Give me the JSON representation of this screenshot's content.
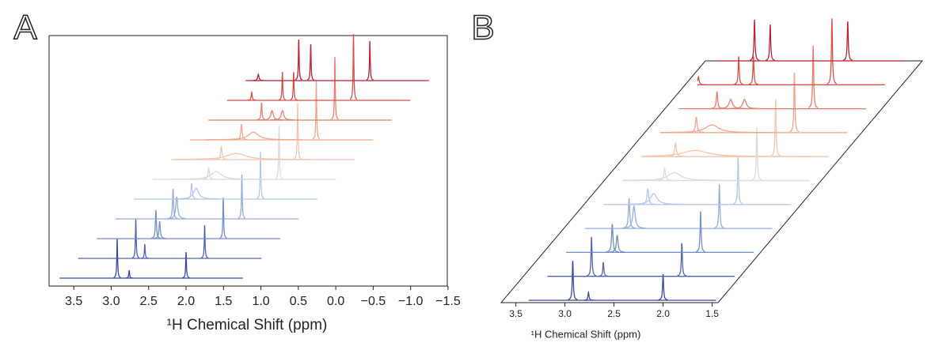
{
  "chart_data": [
    {
      "type": "stacked-spectra",
      "panel_label": "A",
      "xlabel": "¹H Chemical Shift (ppm)",
      "xlim": [
        3.83,
        -1.49
      ],
      "trace_range": [
        3.69,
        1.24
      ],
      "xticks": [
        3.5,
        {
          "value": 3,
          "label": "3.0"
        },
        2.5,
        {
          "value": 2,
          "label": "2.0"
        },
        1.5,
        {
          "value": 1,
          "label": "1.0"
        },
        0.5,
        {
          "value": 0,
          "label": "0.0"
        },
        {
          "value": -0.5,
          "label": "−0.5"
        },
        {
          "value": -1,
          "label": "−1.0"
        },
        {
          "value": -1.5,
          "label": "−1.5"
        }
      ],
      "series": [
        {
          "color": "#3848a0",
          "peaks": [
            {
              "x": 2.92,
              "height": 50,
              "width": 0.006
            },
            {
              "x": 2.76,
              "height": 10,
              "width": 0.006
            },
            {
              "x": 2.0,
              "height": 33,
              "width": 0.006
            }
          ]
        },
        {
          "color": "#4a62b6",
          "peaks": [
            {
              "x": 2.92,
              "height": 50,
              "width": 0.006
            },
            {
              "x": 2.8,
              "height": 18,
              "width": 0.006
            },
            {
              "x": 2.0,
              "height": 42,
              "width": 0.006
            }
          ]
        },
        {
          "color": "#6f8ccc",
          "peaks": [
            {
              "x": 2.9,
              "height": 36,
              "width": 0.008
            },
            {
              "x": 2.85,
              "height": 22,
              "width": 0.01
            },
            {
              "x": 2.0,
              "height": 52,
              "width": 0.006
            }
          ]
        },
        {
          "color": "#93acdd",
          "peaks": [
            {
              "x": 2.92,
              "height": 38,
              "width": 0.008
            },
            {
              "x": 2.87,
              "height": 28,
              "width": 0.015
            },
            {
              "x": 2.0,
              "height": 56,
              "width": 0.006
            }
          ]
        },
        {
          "color": "#b4c7ea",
          "peaks": [
            {
              "x": 2.92,
              "height": 20,
              "width": 0.01
            },
            {
              "x": 2.86,
              "height": 14,
              "width": 0.04
            },
            {
              "x": 2.0,
              "height": 60,
              "width": 0.006
            }
          ]
        },
        {
          "color": "#dadada",
          "peaks": [
            {
              "x": 2.94,
              "height": 15,
              "width": 0.01
            },
            {
              "x": 2.84,
              "height": 10,
              "width": 0.08
            },
            {
              "x": 2.0,
              "height": 68,
              "width": 0.006
            }
          ]
        },
        {
          "color": "#f5c4ad",
          "peaks": [
            {
              "x": 3.02,
              "height": 17,
              "width": 0.01
            },
            {
              "x": 2.82,
              "height": 8,
              "width": 0.15
            },
            {
              "x": 2.0,
              "height": 72,
              "width": 0.006
            }
          ]
        },
        {
          "color": "#f1a48a",
          "peaks": [
            {
              "x": 3.0,
              "height": 20,
              "width": 0.01
            },
            {
              "x": 2.84,
              "height": 10,
              "width": 0.08
            },
            {
              "x": 2.0,
              "height": 76,
              "width": 0.006
            }
          ]
        },
        {
          "color": "#e77d68",
          "peaks": [
            {
              "x": 2.98,
              "height": 22,
              "width": 0.008
            },
            {
              "x": 2.84,
              "height": 12,
              "width": 0.02
            },
            {
              "x": 2.7,
              "height": 12,
              "width": 0.02
            },
            {
              "x": 2.0,
              "height": 80,
              "width": 0.006
            }
          ]
        },
        {
          "color": "#d6504a",
          "peaks": [
            {
              "x": 3.36,
              "height": 10,
              "width": 0.008
            },
            {
              "x": 2.95,
              "height": 36,
              "width": 0.006
            },
            {
              "x": 2.8,
              "height": 36,
              "width": 0.006
            },
            {
              "x": 2.0,
              "height": 84,
              "width": 0.006
            }
          ]
        },
        {
          "color": "#b82232",
          "peaks": [
            {
              "x": 3.52,
              "height": 8,
              "width": 0.01
            },
            {
              "x": 2.98,
              "height": 52,
              "width": 0.006
            },
            {
              "x": 2.82,
              "height": 46,
              "width": 0.006
            },
            {
              "x": 2.03,
              "height": 50,
              "width": 0.006
            }
          ]
        }
      ]
    },
    {
      "type": "perspective-spectra",
      "panel_label": "B",
      "xlabel": "¹H Chemical Shift (ppm)",
      "xlim": [
        3.65,
        1.44
      ],
      "trace_range": [
        3.37,
        1.46
      ],
      "xticks": [
        3.5,
        {
          "value": 3,
          "label": "3.0"
        },
        2.5,
        {
          "value": 2,
          "label": "2.0"
        },
        1.5
      ]
    }
  ]
}
